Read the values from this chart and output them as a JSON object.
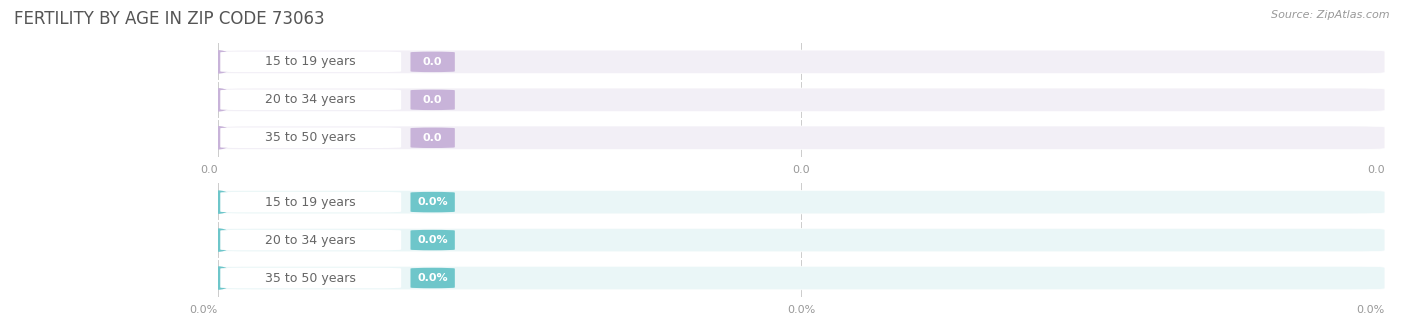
{
  "title": "FERTILITY BY AGE IN ZIP CODE 73063",
  "source": "Source: ZipAtlas.com",
  "sections": [
    {
      "categories": [
        "15 to 19 years",
        "20 to 34 years",
        "35 to 50 years"
      ],
      "values": [
        0.0,
        0.0,
        0.0
      ],
      "bar_color": "#c8b3d9",
      "bar_bg_color": "#f2eff6",
      "circle_color": "#c8b3d9",
      "value_labels": [
        "0.0",
        "0.0",
        "0.0"
      ],
      "tick_labels": [
        "0.0",
        "0.0",
        "0.0"
      ],
      "separator_color": "#e0dce8"
    },
    {
      "categories": [
        "15 to 19 years",
        "20 to 34 years",
        "35 to 50 years"
      ],
      "values": [
        0.0,
        0.0,
        0.0
      ],
      "bar_color": "#6ec6ca",
      "bar_bg_color": "#eaf6f7",
      "circle_color": "#6ec6ca",
      "value_labels": [
        "0.0%",
        "0.0%",
        "0.0%"
      ],
      "tick_labels": [
        "0.0%",
        "0.0%",
        "0.0%"
      ],
      "separator_color": "#d8eff0"
    }
  ],
  "fig_bg_color": "#ffffff",
  "title_color": "#555555",
  "title_fontsize": 12,
  "label_color": "#666666",
  "label_fontsize": 9,
  "value_text_color": "#ffffff",
  "value_fontsize": 8,
  "tick_fontsize": 8,
  "tick_color": "#999999",
  "grid_color": "#cccccc",
  "source_color": "#999999",
  "source_fontsize": 8
}
